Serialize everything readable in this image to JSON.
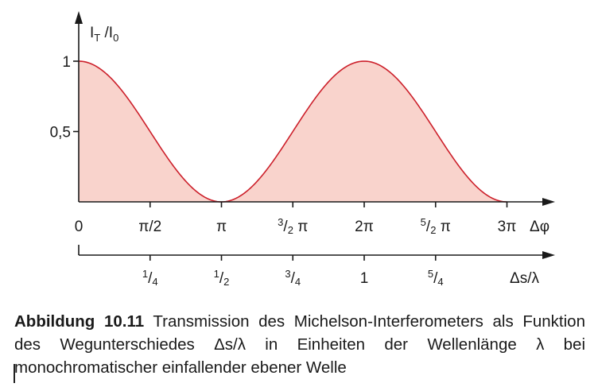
{
  "chart_data": {
    "type": "area",
    "ylabel": {
      "main": "I",
      "sub1": "T",
      "sep": " /I",
      "sub2": "0"
    },
    "y_ticks": [
      {
        "value": 1,
        "label": "1"
      },
      {
        "value": 0.5,
        "label": "0,5"
      }
    ],
    "ylim": [
      0,
      1.1
    ],
    "phase_axis": {
      "label": "Δφ",
      "range": [
        0,
        3
      ],
      "unit": "π",
      "ticks": [
        {
          "value": 0,
          "label": "0"
        },
        {
          "value": 0.5,
          "label": "π/2"
        },
        {
          "value": 1,
          "label": "π"
        },
        {
          "value": 1.5,
          "num": "3",
          "den": "2",
          "suffix": " π"
        },
        {
          "value": 2,
          "label": "2π"
        },
        {
          "value": 2.5,
          "num": "5",
          "den": "2",
          "suffix": " π"
        },
        {
          "value": 3,
          "label": "3π"
        }
      ]
    },
    "path_axis": {
      "label": "Δs/λ",
      "ticks": [
        {
          "value": 0.25,
          "num": "1",
          "den": "4"
        },
        {
          "value": 0.5,
          "num": "1",
          "den": "2"
        },
        {
          "value": 0.75,
          "num": "3",
          "den": "4"
        },
        {
          "value": 1,
          "label": "1"
        },
        {
          "value": 1.25,
          "num": "5",
          "den": "4"
        }
      ]
    },
    "series": [
      {
        "function": "cos^2(Δφ/2)",
        "x_in_pi": [
          0,
          0.25,
          0.5,
          0.75,
          1,
          1.25,
          1.5,
          1.75,
          2,
          2.25,
          2.5,
          2.75,
          3
        ],
        "y": [
          1,
          0.854,
          0.5,
          0.146,
          0,
          0.146,
          0.5,
          0.854,
          1,
          0.854,
          0.5,
          0.146,
          0
        ]
      }
    ],
    "colors": {
      "curve": "#cc1f2a",
      "fill": "#f9d3cc",
      "axis": "#1a1a1a"
    }
  },
  "caption": {
    "label": "Abbildung 10.11",
    "text": "Transmission des Michelson-Interferometers als Funktion des Wegunterschiedes Δs/λ in Einheiten der Wellenlänge λ bei monochromatischer einfallender ebener Welle"
  }
}
